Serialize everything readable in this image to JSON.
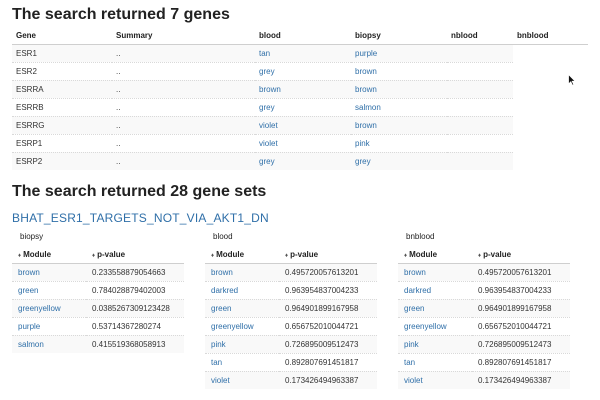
{
  "genes_heading": "The search returned 7 genes",
  "gene_columns": [
    "Gene",
    "Summary",
    "blood",
    "biopsy",
    "nblood",
    "bnblood"
  ],
  "genes": [
    {
      "gene": "ESR1",
      "summary": "..",
      "blood": "tan",
      "biopsy": "purple"
    },
    {
      "gene": "ESR2",
      "summary": "..",
      "blood": "grey",
      "biopsy": "brown"
    },
    {
      "gene": "ESRRA",
      "summary": "..",
      "blood": "brown",
      "biopsy": "brown"
    },
    {
      "gene": "ESRRB",
      "summary": "..",
      "blood": "grey",
      "biopsy": "salmon"
    },
    {
      "gene": "ESRRG",
      "summary": "..",
      "blood": "violet",
      "biopsy": "brown"
    },
    {
      "gene": "ESRP1",
      "summary": "..",
      "blood": "violet",
      "biopsy": "pink"
    },
    {
      "gene": "ESRP2",
      "summary": "..",
      "blood": "grey",
      "biopsy": "grey"
    }
  ],
  "sets_heading": "The search returned 28 gene sets",
  "gene_set": {
    "title": "BHAT_ESR1_TARGETS_NOT_VIA_AKT1_DN",
    "columns": [
      "Module",
      "p-value"
    ],
    "sort_icon": "sort-arrows-icon",
    "panels": [
      {
        "title": "biopsy",
        "rows": [
          {
            "module": "brown",
            "pvalue": "0.233558879054663"
          },
          {
            "module": "green",
            "pvalue": "0.784028879402003"
          },
          {
            "module": "greenyellow",
            "pvalue": "0.0385267309123428"
          },
          {
            "module": "purple",
            "pvalue": "0.53714367280274"
          },
          {
            "module": "salmon",
            "pvalue": "0.415519368058913"
          }
        ]
      },
      {
        "title": "blood",
        "rows": [
          {
            "module": "brown",
            "pvalue": "0.495720057613201"
          },
          {
            "module": "darkred",
            "pvalue": "0.963954837004233"
          },
          {
            "module": "green",
            "pvalue": "0.964901899167958"
          },
          {
            "module": "greenyellow",
            "pvalue": "0.656752010044721"
          },
          {
            "module": "pink",
            "pvalue": "0.726895009512473"
          },
          {
            "module": "tan",
            "pvalue": "0.892807691451817"
          },
          {
            "module": "violet",
            "pvalue": "0.173426494963387"
          }
        ]
      },
      {
        "title": "bnblood",
        "rows": [
          {
            "module": "brown",
            "pvalue": "0.495720057613201"
          },
          {
            "module": "darkred",
            "pvalue": "0.963954837004233"
          },
          {
            "module": "green",
            "pvalue": "0.964901899167958"
          },
          {
            "module": "greenyellow",
            "pvalue": "0.656752010044721"
          },
          {
            "module": "pink",
            "pvalue": "0.726895009512473"
          },
          {
            "module": "tan",
            "pvalue": "0.892807691451817"
          },
          {
            "module": "violet",
            "pvalue": "0.173426494963387"
          }
        ]
      }
    ]
  },
  "colors": {
    "link": "#2f6fa8",
    "stripe": "#f9f9f9"
  }
}
